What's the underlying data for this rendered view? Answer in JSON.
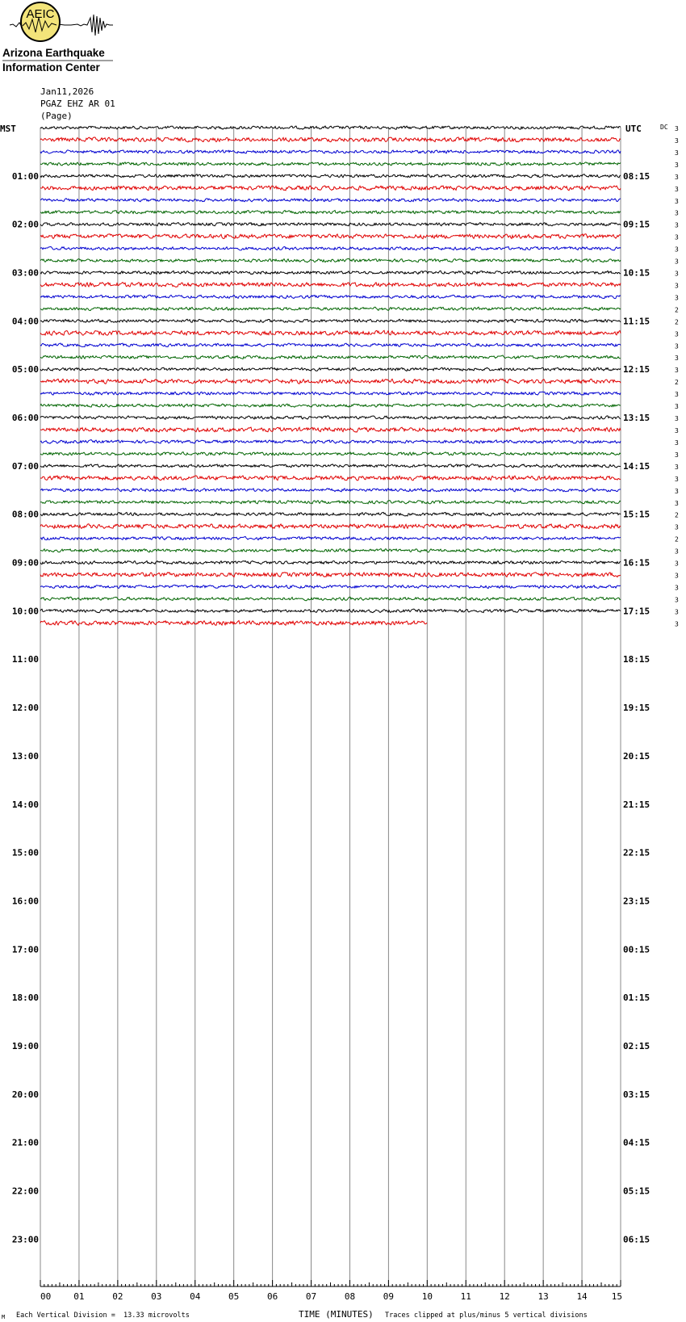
{
  "logo": {
    "badge": "AEIC",
    "line1": "Arizona Earthquake",
    "line2": "Information Center"
  },
  "header": {
    "date": "Jan11,2026",
    "station": "PGAZ EHZ AR 01",
    "location": "(Page)"
  },
  "chart_data": {
    "type": "line",
    "title": "",
    "left_axis_label": "MST",
    "right_axis_label": "UTC",
    "dc_label": "DC",
    "xlabel": "TIME (MINUTES)",
    "x_ticks": [
      "00",
      "01",
      "02",
      "03",
      "04",
      "05",
      "06",
      "07",
      "08",
      "09",
      "10",
      "11",
      "12",
      "13",
      "14",
      "15"
    ],
    "xlim": [
      0,
      15
    ],
    "left_hours": [
      "01:00",
      "02:00",
      "03:00",
      "04:00",
      "05:00",
      "06:00",
      "07:00",
      "08:00",
      "09:00",
      "10:00",
      "11:00",
      "12:00",
      "13:00",
      "14:00",
      "15:00",
      "16:00",
      "17:00",
      "18:00",
      "19:00",
      "20:00",
      "21:00",
      "22:00",
      "23:00"
    ],
    "right_hours": [
      "08:15",
      "09:15",
      "10:15",
      "11:15",
      "12:15",
      "13:15",
      "14:15",
      "15:15",
      "16:15",
      "17:15",
      "18:15",
      "19:15",
      "20:15",
      "21:15",
      "22:15",
      "23:15",
      "00:15",
      "01:15",
      "02:15",
      "03:15",
      "04:15",
      "05:15",
      "06:15"
    ],
    "trace_colors": [
      "#000000",
      "#e00000",
      "#0000d0",
      "#006400"
    ],
    "traces_recorded": 42,
    "last_trace_minutes": 10,
    "dc_values": [
      "3",
      "3",
      "3",
      "3",
      "3",
      "3",
      "3",
      "3",
      "3",
      "3",
      "3",
      "3",
      "3",
      "3",
      "3",
      "2",
      "2",
      "3",
      "3",
      "3",
      "3",
      "2",
      "3",
      "3",
      "3",
      "3",
      "3",
      "3",
      "3",
      "3",
      "3",
      "3",
      "2",
      "3",
      "2",
      "3",
      "3",
      "3",
      "3",
      "3",
      "3",
      "3"
    ],
    "footer_left": "Each Vertical Division =",
    "footer_scale": "13.33 microvolts",
    "footer_right": "Traces clipped at plus/minus 5 vertical divisions",
    "footer_mark": "M"
  }
}
